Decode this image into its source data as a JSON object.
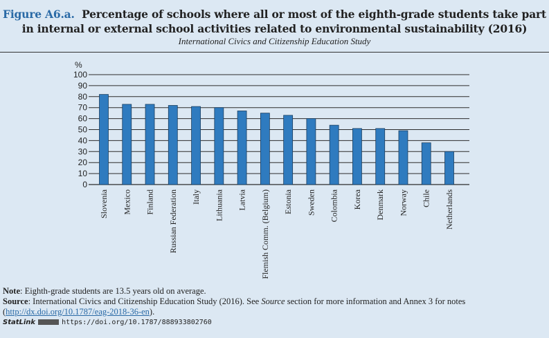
{
  "header": {
    "figure_label": "Figure A6.a.",
    "title_line1": "Percentage of schools where all or most of the eighth-grade students take part",
    "title_line2": "in internal or external school activities related to environmental sustainability (2016)",
    "subtitle": "International Civics and Citizenship Education Study"
  },
  "chart_data": {
    "type": "bar",
    "title": "Percentage of schools where all or most of the eighth-grade students take part in internal or external school activities related to environmental sustainability (2016)",
    "ylabel": "%",
    "ylim": [
      0,
      100
    ],
    "yticks": [
      0,
      10,
      20,
      30,
      40,
      50,
      60,
      70,
      80,
      90,
      100
    ],
    "grid": true,
    "bar_color": "#2f7bbf",
    "categories": [
      "Slovenia",
      "Mexico",
      "Finland",
      "Russian Federation",
      "Italy",
      "Lithuania",
      "Latvia",
      "Flemish Comm. (Belgium)",
      "Estonia",
      "Sweden",
      "Colombia",
      "Korea",
      "Denmark",
      "Norway",
      "Chile",
      "Netherlands"
    ],
    "values": [
      82,
      73,
      73,
      72,
      71,
      70,
      67,
      65,
      63,
      60,
      54,
      51,
      51,
      49,
      38,
      30
    ]
  },
  "footer": {
    "note_label": "Note",
    "note_text": ": Eighth-grade students are 13.5 years old on average.",
    "source_label": "Source",
    "source_text1": ": International Civics and Citizenship Education Study (2016). See ",
    "source_italic": "Source",
    "source_text2": " section for more information and Annex 3 for notes",
    "source_link": "http://dx.doi.org/10.1787/eag-2018-36-en",
    "statlink_label": "StatLink",
    "statlink_url": "https://doi.org/10.1787/888933802760"
  }
}
